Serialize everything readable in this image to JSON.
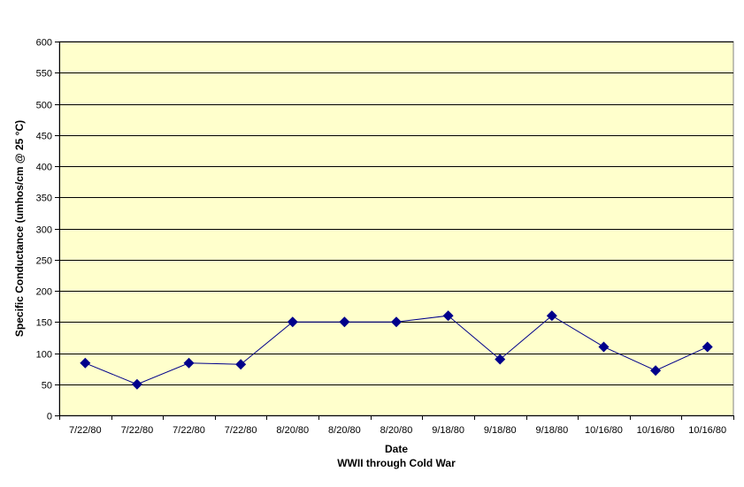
{
  "chart_data": {
    "type": "line",
    "xlabel": "Date",
    "ylabel": "Specific Conductance (umhos/cm @ 25 °C)",
    "subtitle": "WWII through Cold War",
    "categories": [
      "7/22/80",
      "7/22/80",
      "7/22/80",
      "7/22/80",
      "8/20/80",
      "8/20/80",
      "8/20/80",
      "9/18/80",
      "9/18/80",
      "9/18/80",
      "10/16/80",
      "10/16/80",
      "10/16/80"
    ],
    "series": [
      {
        "values": [
          84,
          50,
          84,
          82,
          150,
          150,
          150,
          160,
          90,
          160,
          110,
          72,
          110
        ]
      }
    ],
    "ylim": [
      0,
      600
    ],
    "yticks": [
      0,
      50,
      100,
      150,
      200,
      250,
      300,
      350,
      400,
      450,
      500,
      550,
      600
    ],
    "grid": true,
    "colors": {
      "plot_bg": "#ffffcc",
      "series": "#00008b",
      "grid": "#000000"
    }
  }
}
